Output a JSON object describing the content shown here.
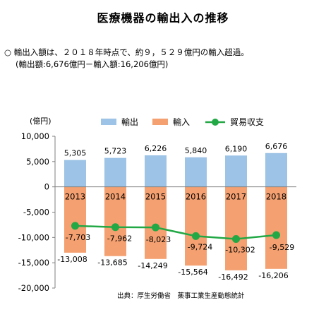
{
  "title": "医療機器の輸出入の推移",
  "summary": "○ 輸出入額は、２０１８年時点で、約９，５２９億円の輸入超過。",
  "detail": "(輸出額:6,676億円－輸入額:16,206億円)",
  "source": "出典：厚生労働省　薬事工業生産動態統計",
  "chart_data": {
    "type": "bar",
    "categories": [
      "2013",
      "2014",
      "2015",
      "2016",
      "2017",
      "2018"
    ],
    "ylabel": "(億円)",
    "ylim": [
      -20000,
      10000
    ],
    "yticks": [
      10000,
      5000,
      0,
      -5000,
      -10000,
      -15000,
      -20000
    ],
    "ytick_labels": [
      "10,000",
      "5,000",
      "0",
      "-5,000",
      "-10,000",
      "-15,000",
      "-20,000"
    ],
    "legend_position": "top",
    "grid": false,
    "series": [
      {
        "name": "輸出",
        "kind": "bar",
        "color": "#9dc3e6",
        "values": [
          5305,
          5723,
          6226,
          5840,
          6190,
          6676
        ],
        "labels": [
          "5,305",
          "5,723",
          "6,226",
          "5,840",
          "6,190",
          "6,676"
        ]
      },
      {
        "name": "輸入",
        "kind": "bar",
        "color": "#f4a070",
        "values": [
          -13008,
          -13685,
          -14249,
          -15564,
          -16492,
          -16206
        ],
        "labels": [
          "-13,008",
          "-13,685",
          "-14,249",
          "-15,564",
          "-16,492",
          "-16,206"
        ]
      },
      {
        "name": "貿易収支",
        "kind": "line",
        "color": "#22a845",
        "values": [
          -7703,
          -7962,
          -8023,
          -9724,
          -10302,
          -9529
        ],
        "labels": [
          "-7,703",
          "-7,962",
          "-8,023",
          "-9,724",
          "-10,302",
          "-9,529"
        ]
      }
    ]
  }
}
